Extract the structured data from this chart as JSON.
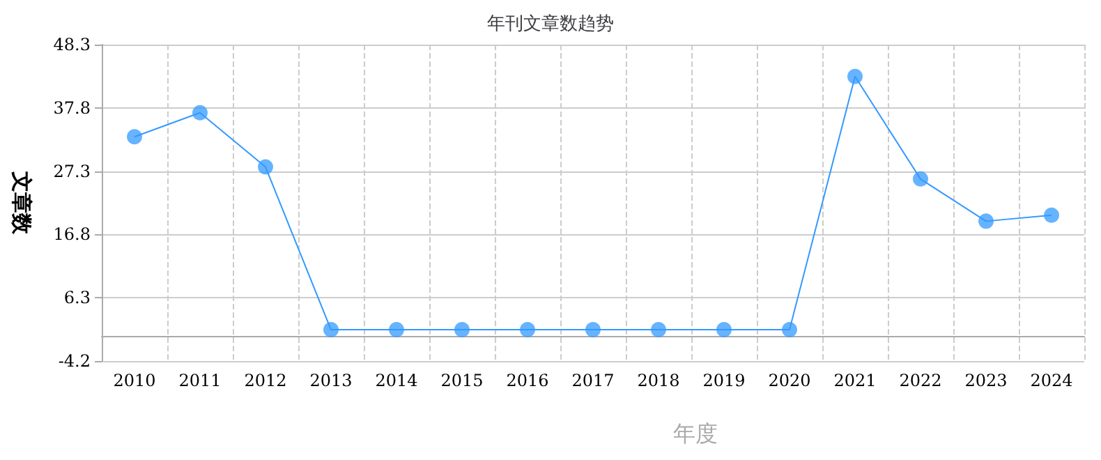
{
  "chart_data": {
    "type": "line",
    "title": "年刊文章数趋势",
    "xlabel": "年度",
    "ylabel": "文章数",
    "categories": [
      "2010",
      "2011",
      "2012",
      "2013",
      "2014",
      "2015",
      "2016",
      "2017",
      "2018",
      "2019",
      "2020",
      "2021",
      "2022",
      "2023",
      "2024"
    ],
    "series": [
      {
        "color": "#3399ff",
        "values": [
          33,
          37,
          28,
          1,
          1,
          1,
          1,
          1,
          1,
          1,
          1,
          43,
          26,
          19,
          20
        ]
      }
    ],
    "ylim": [
      -4.2,
      48.3
    ],
    "yticks": [
      -4.2,
      6.3,
      16.8,
      27.3,
      37.8,
      48.3
    ],
    "grid": true,
    "marker": "circle",
    "line_style": "solid"
  }
}
